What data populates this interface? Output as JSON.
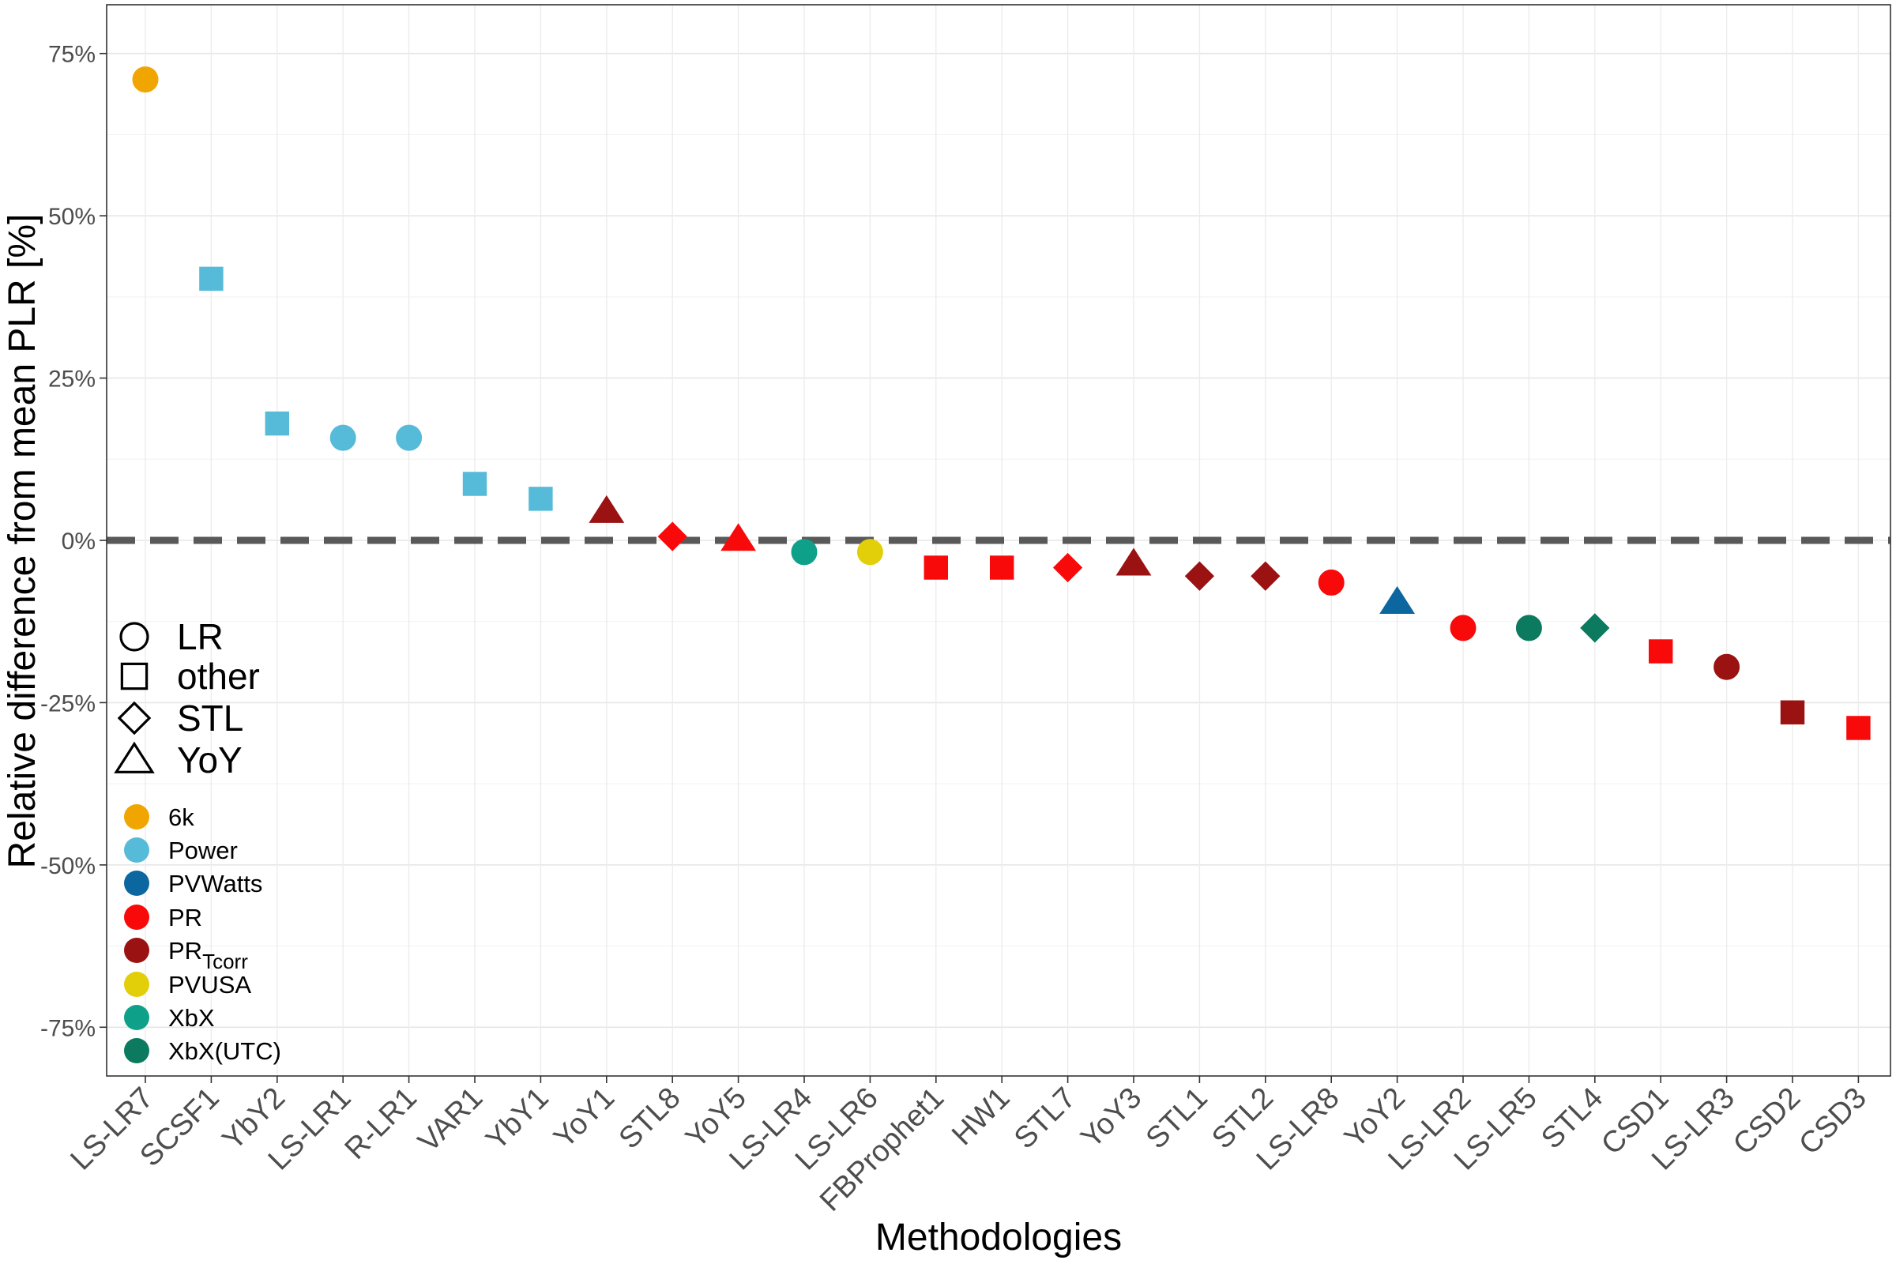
{
  "chart_data": {
    "type": "scatter",
    "xlabel": "Methodologies",
    "ylabel": "Relative difference from mean PLR [%]",
    "ylim": [
      -82,
      82
    ],
    "yticks": [
      75,
      50,
      25,
      0,
      -25,
      -50,
      -75
    ],
    "ytick_labels": [
      "75%",
      "50%",
      "25%",
      "0%",
      "-25%",
      "-50%",
      "-75%"
    ],
    "grid": true,
    "reference_line": {
      "y": 0,
      "style": "dashed"
    },
    "shape_legend": [
      {
        "label": "LR",
        "shape": "circle"
      },
      {
        "label": "other",
        "shape": "square"
      },
      {
        "label": "STL",
        "shape": "diamond"
      },
      {
        "label": "YoY",
        "shape": "triangle"
      }
    ],
    "color_legend": [
      {
        "key": "6k",
        "label": "6k",
        "color": "#F0A500"
      },
      {
        "key": "Power",
        "label": "Power",
        "color": "#56BBD8"
      },
      {
        "key": "PVWatts",
        "label": "PVWatts",
        "color": "#0C66A0"
      },
      {
        "key": "PR",
        "label": "PR",
        "color": "#F80A0A"
      },
      {
        "key": "PRTcorr",
        "label": "PR",
        "subscript": "Tcorr",
        "color": "#9B1212"
      },
      {
        "key": "PVUSA",
        "label": "PVUSA",
        "color": "#E2CF0A"
      },
      {
        "key": "XbX",
        "label": "XbX",
        "color": "#0FA08A"
      },
      {
        "key": "XbXUTC",
        "label": "XbX(UTC)",
        "color": "#0B7A5E"
      }
    ],
    "categories": [
      "LS-LR7",
      "SCSF1",
      "YbY2",
      "LS-LR1",
      "R-LR1",
      "VAR1",
      "YbY1",
      "YoY1",
      "STL8",
      "YoY5",
      "LS-LR4",
      "LS-LR6",
      "FBProphet1",
      "HW1",
      "STL7",
      "YoY3",
      "STL1",
      "STL2",
      "LS-LR8",
      "YoY2",
      "LS-LR2",
      "LS-LR5",
      "STL4",
      "CSD1",
      "LS-LR3",
      "CSD2",
      "CSD3"
    ],
    "points": [
      {
        "x": "LS-LR7",
        "y": 71,
        "shape": "circle",
        "group": "6k"
      },
      {
        "x": "SCSF1",
        "y": 40.3,
        "shape": "square",
        "group": "Power"
      },
      {
        "x": "YbY2",
        "y": 18,
        "shape": "square",
        "group": "Power"
      },
      {
        "x": "LS-LR1",
        "y": 15.8,
        "shape": "circle",
        "group": "Power"
      },
      {
        "x": "R-LR1",
        "y": 15.8,
        "shape": "circle",
        "group": "Power"
      },
      {
        "x": "VAR1",
        "y": 8.7,
        "shape": "square",
        "group": "Power"
      },
      {
        "x": "YbY1",
        "y": 6.4,
        "shape": "square",
        "group": "Power"
      },
      {
        "x": "YoY1",
        "y": 4.5,
        "shape": "triangle",
        "group": "PRTcorr"
      },
      {
        "x": "STL8",
        "y": 0.6,
        "shape": "diamond",
        "group": "PR"
      },
      {
        "x": "YoY5",
        "y": 0.2,
        "shape": "triangle",
        "group": "PR"
      },
      {
        "x": "LS-LR4",
        "y": -1.8,
        "shape": "circle",
        "group": "XbX"
      },
      {
        "x": "LS-LR6",
        "y": -1.8,
        "shape": "circle",
        "group": "PVUSA"
      },
      {
        "x": "FBProphet1",
        "y": -4.2,
        "shape": "square",
        "group": "PR"
      },
      {
        "x": "HW1",
        "y": -4.2,
        "shape": "square",
        "group": "PR"
      },
      {
        "x": "STL7",
        "y": -4.2,
        "shape": "diamond",
        "group": "PR"
      },
      {
        "x": "YoY3",
        "y": -3.6,
        "shape": "triangle",
        "group": "PRTcorr"
      },
      {
        "x": "STL1",
        "y": -5.5,
        "shape": "diamond",
        "group": "PRTcorr"
      },
      {
        "x": "STL2",
        "y": -5.5,
        "shape": "diamond",
        "group": "PRTcorr"
      },
      {
        "x": "LS-LR8",
        "y": -6.5,
        "shape": "circle",
        "group": "PR"
      },
      {
        "x": "YoY2",
        "y": -9.5,
        "shape": "triangle",
        "group": "PVWatts"
      },
      {
        "x": "LS-LR2",
        "y": -13.5,
        "shape": "circle",
        "group": "PR"
      },
      {
        "x": "LS-LR5",
        "y": -13.5,
        "shape": "circle",
        "group": "XbXUTC"
      },
      {
        "x": "STL4",
        "y": -13.5,
        "shape": "diamond",
        "group": "XbXUTC"
      },
      {
        "x": "CSD1",
        "y": -17.1,
        "shape": "square",
        "group": "PR"
      },
      {
        "x": "LS-LR3",
        "y": -19.5,
        "shape": "circle",
        "group": "PRTcorr"
      },
      {
        "x": "CSD2",
        "y": -26.5,
        "shape": "square",
        "group": "PRTcorr"
      },
      {
        "x": "CSD3",
        "y": -28.9,
        "shape": "square",
        "group": "PR"
      }
    ]
  }
}
